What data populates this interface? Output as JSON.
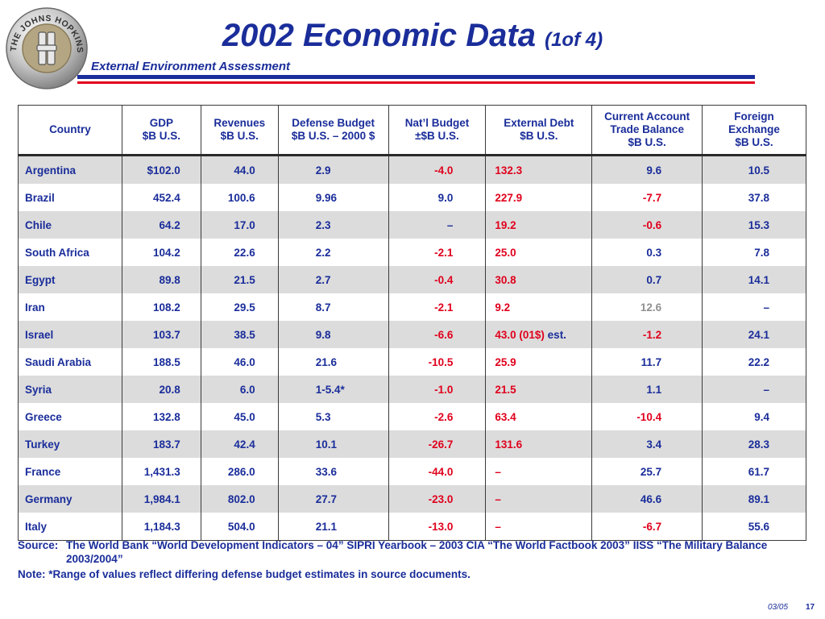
{
  "header": {
    "title_main": "2002 Economic Data",
    "title_part": "(1of 4)",
    "subtitle": "External Environment Assessment",
    "seal_text": "THE JOHNS HOPKINS UNIVERSITY",
    "seal_monogram": "APL",
    "colors": {
      "blue": "#1a2d9a",
      "red": "#e0001c",
      "shade": "#dcdcdc"
    }
  },
  "table": {
    "columns": [
      [
        "Country"
      ],
      [
        "GDP",
        "$B U.S."
      ],
      [
        "Revenues",
        "$B U.S."
      ],
      [
        "Defense Budget",
        "$B U.S. – 2000 $"
      ],
      [
        "Nat’l Budget",
        "±$B U.S."
      ],
      [
        "External Debt",
        "$B U.S."
      ],
      [
        "Current Account",
        "Trade Balance",
        "$B U.S."
      ],
      [
        "Foreign",
        "Exchange",
        "$B U.S."
      ]
    ],
    "rows": [
      {
        "country": "Argentina",
        "gdp": "$102.0",
        "revenues": "44.0",
        "defense": "2.9",
        "natl": "-4.0",
        "debt": "132.3",
        "current": "9.6",
        "fx": "10.5"
      },
      {
        "country": "Brazil",
        "gdp": "452.4",
        "revenues": "100.6",
        "defense": "9.96",
        "natl": "9.0",
        "debt": "227.9",
        "current": "-7.7",
        "fx": "37.8"
      },
      {
        "country": "Chile",
        "gdp": "64.2",
        "revenues": "17.0",
        "defense": "2.3",
        "natl": "–",
        "debt": "19.2",
        "current": "-0.6",
        "fx": "15.3"
      },
      {
        "country": "South Africa",
        "gdp": "104.2",
        "revenues": "22.6",
        "defense": "2.2",
        "natl": "-2.1",
        "debt": "25.0",
        "current": "0.3",
        "fx": "7.8"
      },
      {
        "country": "Egypt",
        "gdp": "89.8",
        "revenues": "21.5",
        "defense": "2.7",
        "natl": "-0.4",
        "debt": "30.8",
        "current": "0.7",
        "fx": "14.1"
      },
      {
        "country": "Iran",
        "gdp": "108.2",
        "revenues": "29.5",
        "defense": "8.7",
        "natl": "-2.1",
        "debt": "9.2",
        "current": "12.6",
        "fx": "–"
      },
      {
        "country": "Israel",
        "gdp": "103.7",
        "revenues": "38.5",
        "defense": "9.8",
        "natl": "-6.6",
        "debt": "43.0 (01$)",
        "debt_note": " est.",
        "current": "-1.2",
        "fx": "24.1"
      },
      {
        "country": "Saudi Arabia",
        "gdp": "188.5",
        "revenues": "46.0",
        "defense": "21.6",
        "natl": "-10.5",
        "debt": "25.9",
        "current": "11.7",
        "fx": "22.2"
      },
      {
        "country": "Syria",
        "gdp": "20.8",
        "revenues": "6.0",
        "defense": "1-5.4*",
        "natl": "-1.0",
        "debt": "21.5",
        "current": "1.1",
        "fx": "–"
      },
      {
        "country": "Greece",
        "gdp": "132.8",
        "revenues": "45.0",
        "defense": "5.3",
        "natl": "-2.6",
        "debt": "63.4",
        "current": "-10.4",
        "fx": "9.4"
      },
      {
        "country": "Turkey",
        "gdp": "183.7",
        "revenues": "42.4",
        "defense": "10.1",
        "natl": "-26.7",
        "debt": "131.6",
        "current": "3.4",
        "fx": "28.3"
      },
      {
        "country": "France",
        "gdp": "1,431.3",
        "revenues": "286.0",
        "defense": "33.6",
        "natl": "-44.0",
        "debt": "–",
        "current": "25.7",
        "fx": "61.7"
      },
      {
        "country": "Germany",
        "gdp": "1,984.1",
        "revenues": "802.0",
        "defense": "27.7",
        "natl": "-23.0",
        "debt": "–",
        "current": "46.6",
        "fx": "89.1"
      },
      {
        "country": "Italy",
        "gdp": "1,184.3",
        "revenues": "504.0",
        "defense": "21.1",
        "natl": "-13.0",
        "debt": "–",
        "current": "-6.7",
        "fx": "55.6"
      }
    ]
  },
  "source": {
    "label": "Source:",
    "line1": "The World Bank “World Development Indicators – 04”   SIPRI Yearbook – 2003    CIA “The World Factbook 2003”    IISS “The Military Balance",
    "line2": "2003/2004”"
  },
  "note": "Note:  *Range of values reflect differing defense budget estimates in source documents.",
  "footer": {
    "date": "03/05",
    "page": "17"
  }
}
